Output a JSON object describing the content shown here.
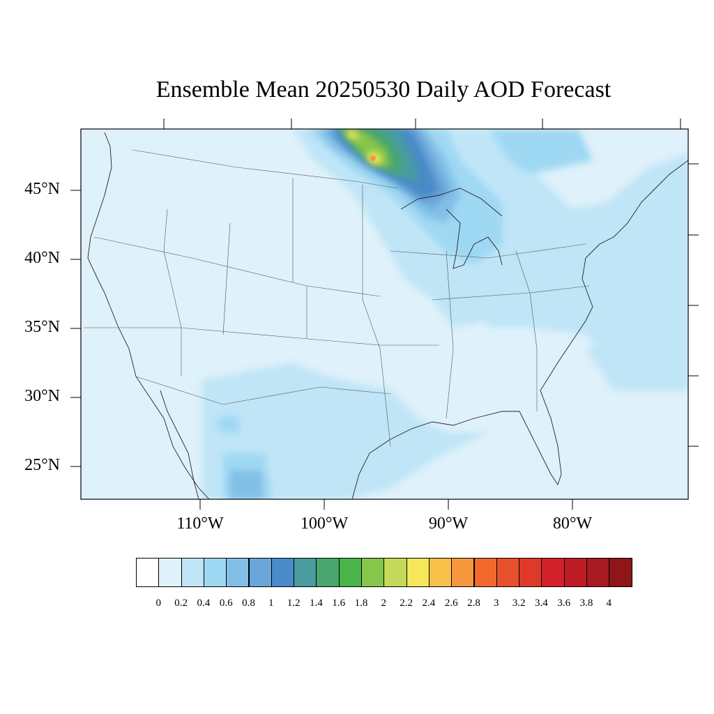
{
  "title": "Ensemble Mean 20250530 Daily AOD Forecast",
  "lat_labels": [
    "45°N",
    "40°N",
    "35°N",
    "30°N",
    "25°N"
  ],
  "lon_labels": [
    "110°W",
    "100°W",
    "90°W",
    "80°W"
  ],
  "colorbar": {
    "colors": [
      "#ffffff",
      "#dff1fa",
      "#bfe5f7",
      "#9fd8f3",
      "#82bfe6",
      "#6aa6d9",
      "#4a8ac8",
      "#4a9c9f",
      "#4aa56f",
      "#4bb44a",
      "#86c64a",
      "#c4d95a",
      "#f5e65a",
      "#f8c14a",
      "#f6973d",
      "#f2692d",
      "#e7512d",
      "#de3a2a",
      "#d3212b",
      "#bd1c25",
      "#a61a21",
      "#8e1619"
    ],
    "tick_labels": [
      "0",
      "0.2",
      "0.4",
      "0.6",
      "0.8",
      "1",
      "1.2",
      "1.4",
      "1.6",
      "1.8",
      "2",
      "2.2",
      "2.4",
      "2.6",
      "2.8",
      "3",
      "3.2",
      "3.4",
      "3.6",
      "3.8",
      "4"
    ]
  }
}
